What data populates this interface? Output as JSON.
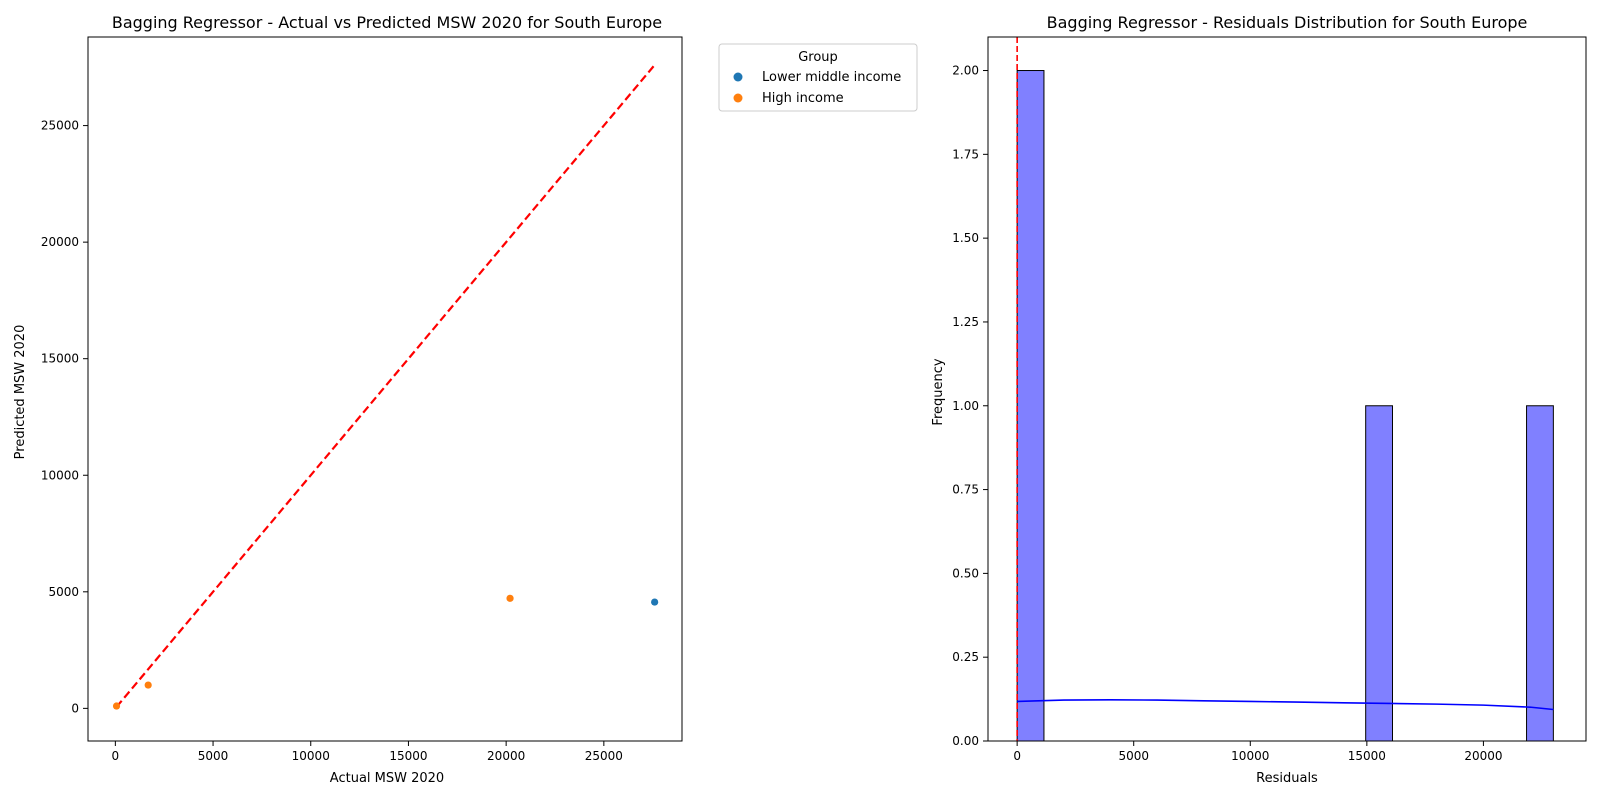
{
  "chart_data": [
    {
      "type": "scatter",
      "title": "Bagging Regressor - Actual vs Predicted MSW 2020 for South Europe",
      "xlabel": "Actual MSW 2020",
      "ylabel": "Predicted MSW 2020",
      "xlim": [
        -1400,
        29000
      ],
      "ylim": [
        -1400,
        28800
      ],
      "xticks": [
        0,
        5000,
        10000,
        15000,
        20000,
        25000
      ],
      "yticks": [
        0,
        5000,
        10000,
        15000,
        20000,
        25000
      ],
      "xtick_labels": [
        "0",
        "5000",
        "10000",
        "15000",
        "20000",
        "25000"
      ],
      "ytick_labels": [
        "0",
        "5000",
        "10000",
        "15000",
        "20000",
        "25000"
      ],
      "grid": false,
      "legend": {
        "title": "Group",
        "placement": "outside-top-right"
      },
      "series": [
        {
          "name": "Lower middle income",
          "color": "#1f77b4",
          "points": [
            {
              "x": 27600,
              "y": 4560
            }
          ]
        },
        {
          "name": "High income",
          "color": "#ff7f0e",
          "points": [
            {
              "x": 20200,
              "y": 4720
            },
            {
              "x": 1680,
              "y": 1000
            },
            {
              "x": 60,
              "y": 100
            }
          ]
        }
      ],
      "reference_line": {
        "style": "dashed",
        "color": "#ff0000",
        "from": [
          60,
          60
        ],
        "to": [
          27600,
          27600
        ]
      }
    },
    {
      "type": "bar",
      "subtype": "histogram",
      "title": "Bagging Regressor - Residuals Distribution for South Europe",
      "xlabel": "Residuals",
      "ylabel": "Frequency",
      "xlim": [
        -1250,
        24400
      ],
      "ylim": [
        0,
        2.1
      ],
      "xticks": [
        0,
        5000,
        10000,
        15000,
        20000
      ],
      "yticks": [
        0,
        0.25,
        0.5,
        0.75,
        1.0,
        1.25,
        1.5,
        1.75,
        2.0
      ],
      "xtick_labels": [
        "0",
        "5000",
        "10000",
        "15000",
        "20000"
      ],
      "ytick_labels": [
        "0.00",
        "0.25",
        "0.50",
        "0.75",
        "1.00",
        "1.25",
        "1.50",
        "1.75",
        "2.00"
      ],
      "grid": false,
      "bar_color": "#8080ff",
      "bins": [
        {
          "start": 0,
          "end": 1150,
          "count": 2
        },
        {
          "start": 14950,
          "end": 16100,
          "count": 1
        },
        {
          "start": 21850,
          "end": 23000,
          "count": 1
        }
      ],
      "kde": {
        "color": "#0000ff",
        "points": [
          [
            0,
            0.118
          ],
          [
            2000,
            0.122
          ],
          [
            4000,
            0.123
          ],
          [
            6000,
            0.122
          ],
          [
            8000,
            0.12
          ],
          [
            10000,
            0.118
          ],
          [
            12000,
            0.116
          ],
          [
            14000,
            0.114
          ],
          [
            16000,
            0.112
          ],
          [
            18000,
            0.11
          ],
          [
            20000,
            0.107
          ],
          [
            22000,
            0.101
          ],
          [
            23000,
            0.094
          ]
        ]
      },
      "reference_line": {
        "style": "dashed",
        "color": "#ff0000",
        "x": 0
      }
    }
  ]
}
